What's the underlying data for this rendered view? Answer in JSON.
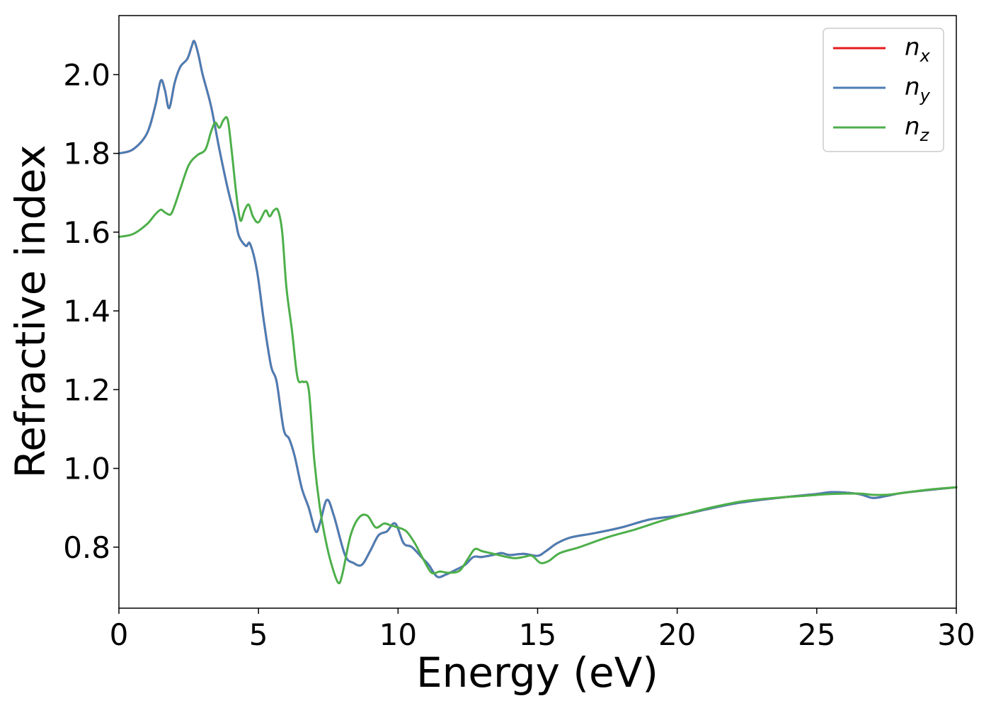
{
  "chart_data": {
    "type": "line",
    "title": "",
    "xlabel": "Energy (eV)",
    "ylabel": "Refractive index",
    "xlim": [
      0,
      30
    ],
    "ylim": [
      0.645,
      2.15
    ],
    "xticks": [
      "0",
      "5",
      "10",
      "15",
      "20",
      "25",
      "30"
    ],
    "yticks": [
      "0.8",
      "1.0",
      "1.2",
      "1.4",
      "1.6",
      "1.8",
      "2.0"
    ],
    "grid": false,
    "legend_position": "top-right",
    "series": [
      {
        "name": "n_x",
        "label_main": "n",
        "label_sub": "x",
        "color": "#e41a1c",
        "x": [
          0,
          0.5,
          1.0,
          1.3,
          1.5,
          1.65,
          1.8,
          2.0,
          2.2,
          2.45,
          2.6,
          2.7,
          2.85,
          3.0,
          3.3,
          3.6,
          3.9,
          4.15,
          4.3,
          4.55,
          4.7,
          4.95,
          5.2,
          5.45,
          5.65,
          5.9,
          6.1,
          6.3,
          6.55,
          6.8,
          7.05,
          7.2,
          7.45,
          7.7,
          8.1,
          8.4,
          8.7,
          9.0,
          9.3,
          9.6,
          9.9,
          10.2,
          10.5,
          10.9,
          11.1,
          11.4,
          11.7,
          12.0,
          12.4,
          12.7,
          13.0,
          13.4,
          13.7,
          14.0,
          14.5,
          15.0,
          15.3,
          15.7,
          16.2,
          17.0,
          18.0,
          19.0,
          20.0,
          21.0,
          22.0,
          23.0,
          24.0,
          25.0,
          25.6,
          26.5,
          27.0,
          27.5,
          28.0,
          29.0,
          30.0
        ],
        "y": [
          1.8,
          1.81,
          1.85,
          1.92,
          1.985,
          1.96,
          1.915,
          1.98,
          2.02,
          2.04,
          2.07,
          2.085,
          2.05,
          2.0,
          1.92,
          1.81,
          1.71,
          1.64,
          1.59,
          1.565,
          1.57,
          1.5,
          1.37,
          1.26,
          1.22,
          1.1,
          1.075,
          1.03,
          0.95,
          0.9,
          0.84,
          0.86,
          0.92,
          0.88,
          0.78,
          0.76,
          0.755,
          0.79,
          0.83,
          0.84,
          0.86,
          0.81,
          0.8,
          0.77,
          0.755,
          0.725,
          0.73,
          0.74,
          0.755,
          0.775,
          0.775,
          0.78,
          0.785,
          0.78,
          0.783,
          0.778,
          0.79,
          0.81,
          0.825,
          0.835,
          0.85,
          0.87,
          0.88,
          0.895,
          0.91,
          0.92,
          0.928,
          0.935,
          0.94,
          0.935,
          0.925,
          0.93,
          0.937,
          0.945,
          0.952
        ]
      },
      {
        "name": "n_y",
        "label_main": "n",
        "label_sub": "y",
        "color": "#4a7eb5",
        "x": [
          0,
          0.5,
          1.0,
          1.3,
          1.5,
          1.65,
          1.8,
          2.0,
          2.2,
          2.45,
          2.6,
          2.7,
          2.85,
          3.0,
          3.3,
          3.6,
          3.9,
          4.15,
          4.3,
          4.55,
          4.7,
          4.95,
          5.2,
          5.45,
          5.65,
          5.9,
          6.1,
          6.3,
          6.55,
          6.8,
          7.05,
          7.2,
          7.45,
          7.7,
          8.1,
          8.4,
          8.7,
          9.0,
          9.3,
          9.6,
          9.9,
          10.2,
          10.5,
          10.9,
          11.1,
          11.4,
          11.7,
          12.0,
          12.4,
          12.7,
          13.0,
          13.4,
          13.7,
          14.0,
          14.5,
          15.0,
          15.3,
          15.7,
          16.2,
          17.0,
          18.0,
          19.0,
          20.0,
          21.0,
          22.0,
          23.0,
          24.0,
          25.0,
          25.6,
          26.5,
          27.0,
          27.5,
          28.0,
          29.0,
          30.0
        ],
        "y": [
          1.8,
          1.81,
          1.85,
          1.92,
          1.985,
          1.96,
          1.915,
          1.98,
          2.02,
          2.04,
          2.07,
          2.085,
          2.05,
          2.0,
          1.92,
          1.81,
          1.71,
          1.64,
          1.59,
          1.565,
          1.57,
          1.5,
          1.37,
          1.26,
          1.22,
          1.1,
          1.075,
          1.03,
          0.95,
          0.9,
          0.84,
          0.86,
          0.92,
          0.88,
          0.78,
          0.76,
          0.755,
          0.79,
          0.83,
          0.84,
          0.86,
          0.81,
          0.8,
          0.77,
          0.755,
          0.725,
          0.73,
          0.74,
          0.755,
          0.775,
          0.775,
          0.78,
          0.785,
          0.78,
          0.783,
          0.778,
          0.79,
          0.81,
          0.825,
          0.835,
          0.85,
          0.87,
          0.88,
          0.895,
          0.91,
          0.92,
          0.928,
          0.935,
          0.94,
          0.935,
          0.925,
          0.93,
          0.937,
          0.945,
          0.952
        ]
      },
      {
        "name": "n_z",
        "label_main": "n",
        "label_sub": "z",
        "color": "#4daf4a",
        "x": [
          0,
          0.5,
          1.0,
          1.3,
          1.5,
          1.65,
          1.85,
          2.0,
          2.2,
          2.5,
          2.8,
          3.1,
          3.3,
          3.45,
          3.6,
          3.75,
          3.9,
          4.05,
          4.2,
          4.35,
          4.5,
          4.65,
          4.8,
          5.0,
          5.25,
          5.4,
          5.55,
          5.7,
          5.85,
          6.0,
          6.2,
          6.4,
          6.6,
          6.8,
          7.0,
          7.2,
          7.4,
          7.6,
          7.85,
          8.0,
          8.3,
          8.6,
          8.9,
          9.2,
          9.5,
          9.75,
          10.0,
          10.3,
          10.6,
          10.9,
          11.2,
          11.5,
          11.8,
          12.2,
          12.5,
          12.75,
          13.0,
          13.3,
          13.6,
          13.9,
          14.2,
          14.5,
          14.8,
          15.1,
          15.4,
          15.8,
          16.5,
          17.5,
          18.5,
          19.5,
          20.5,
          21.5,
          22.5,
          23.5,
          24.5,
          25.5,
          26.5,
          27.0,
          27.5,
          28.0,
          29.0,
          30.0
        ],
        "y": [
          1.588,
          1.595,
          1.62,
          1.645,
          1.657,
          1.65,
          1.645,
          1.668,
          1.71,
          1.77,
          1.795,
          1.81,
          1.855,
          1.878,
          1.865,
          1.885,
          1.885,
          1.8,
          1.7,
          1.63,
          1.655,
          1.67,
          1.64,
          1.625,
          1.655,
          1.64,
          1.655,
          1.655,
          1.6,
          1.46,
          1.35,
          1.23,
          1.22,
          1.2,
          1.02,
          0.9,
          0.82,
          0.76,
          0.71,
          0.73,
          0.83,
          0.875,
          0.88,
          0.85,
          0.86,
          0.855,
          0.85,
          0.84,
          0.81,
          0.77,
          0.735,
          0.738,
          0.735,
          0.74,
          0.77,
          0.795,
          0.79,
          0.785,
          0.78,
          0.775,
          0.772,
          0.775,
          0.778,
          0.76,
          0.765,
          0.785,
          0.8,
          0.825,
          0.845,
          0.868,
          0.888,
          0.905,
          0.918,
          0.925,
          0.93,
          0.935,
          0.936,
          0.933,
          0.933,
          0.937,
          0.946,
          0.952
        ]
      }
    ]
  }
}
